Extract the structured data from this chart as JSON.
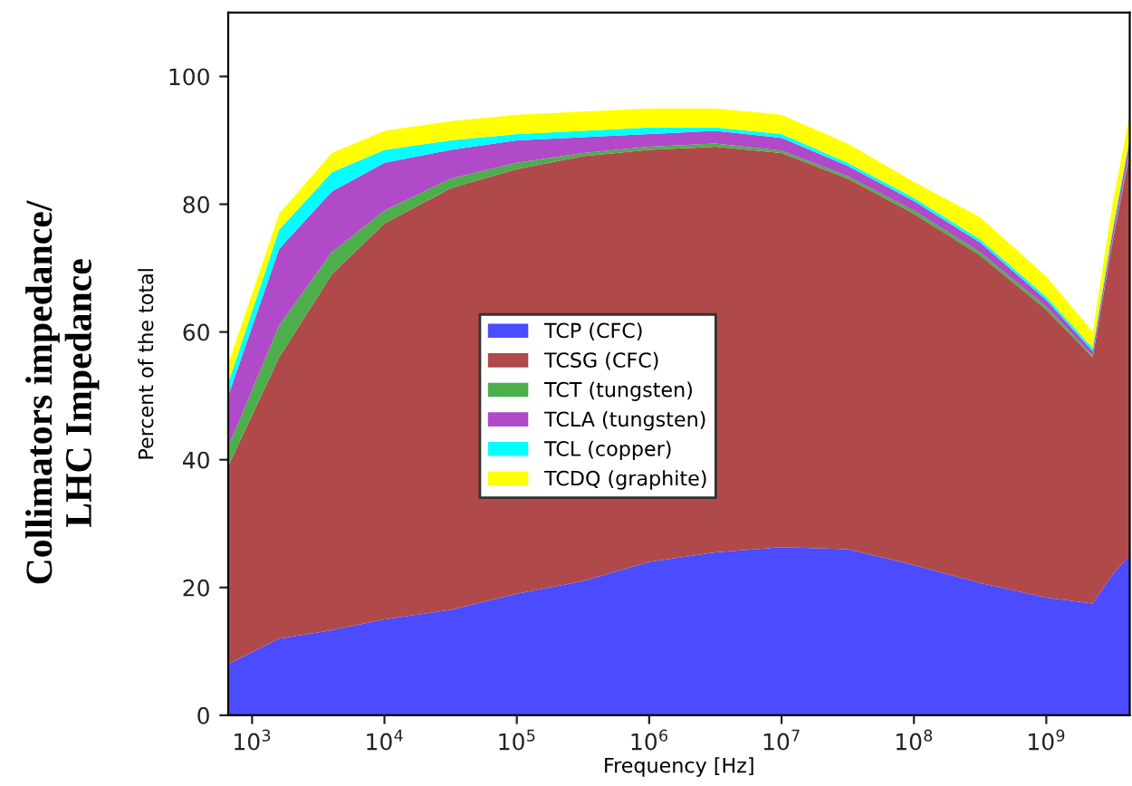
{
  "chart_data": {
    "type": "area",
    "stacked": true,
    "log": "x",
    "xlabel": "Frequency [Hz]",
    "ylabel": "Percent of the total",
    "annotations": [
      "Collimators impedance/\nLHC Impedance"
    ],
    "x": [
      660,
      1600,
      4000,
      10000,
      31600,
      100000,
      316000,
      1000000,
      3160000,
      10000000,
      31600000,
      100000000,
      316000000,
      1000000000,
      2240000000,
      3160000000,
      4270000000
    ],
    "series": [
      {
        "name": "TCP (CFC)",
        "color": "#4b4bff",
        "values": [
          8,
          12,
          13.3,
          15,
          16.5,
          19,
          21,
          24,
          25.5,
          26.3,
          26,
          23.5,
          20.7,
          18.4,
          17.5,
          22,
          25
        ]
      },
      {
        "name": "TCSG (CFC)",
        "color": "#b04a4a",
        "values": [
          31,
          44,
          55.7,
          62,
          66,
          66.5,
          66.5,
          64.5,
          63.5,
          61.7,
          58,
          55,
          51.3,
          45.1,
          38.5,
          52,
          63
        ]
      },
      {
        "name": "TCT (tungsten)",
        "color": "#4caf4c",
        "values": [
          3,
          5,
          3.5,
          2,
          1.5,
          1,
          0.5,
          0.5,
          0.5,
          0.4,
          0.4,
          0.5,
          0.5,
          0.5,
          0.3,
          0.3,
          0.5
        ]
      },
      {
        "name": "TCLA (tungsten)",
        "color": "#b04ac8",
        "values": [
          8,
          12,
          9.5,
          7.5,
          4.5,
          3.5,
          2.5,
          2,
          2,
          2,
          1.6,
          1.5,
          1.5,
          1,
          0.7,
          1.2,
          1.5
        ]
      },
      {
        "name": "TCL (copper)",
        "color": "#00ffff",
        "values": [
          2,
          3,
          3,
          2,
          1.5,
          1,
          1,
          1,
          0.5,
          0.6,
          0.5,
          0.5,
          0.5,
          0.5,
          0.5,
          0.5,
          0.5
        ]
      },
      {
        "name": "TCDQ (graphite)",
        "color": "#ffff00",
        "values": [
          3,
          2.5,
          3,
          3,
          3,
          3,
          3,
          3,
          3,
          3,
          3,
          2.5,
          3.5,
          3.2,
          2.5,
          4,
          3.5
        ]
      }
    ],
    "xlim": [
      660,
      4270000000
    ],
    "ylim": [
      0,
      110
    ],
    "xticks": [
      {
        "value": 1000,
        "label": "10$^{3}$"
      },
      {
        "value": 10000,
        "label": "10$^{4}$"
      },
      {
        "value": 100000,
        "label": "10$^{5}$"
      },
      {
        "value": 1000000,
        "label": "10$^{6}$"
      },
      {
        "value": 10000000,
        "label": "10$^{7}$"
      },
      {
        "value": 100000000,
        "label": "10$^{8}$"
      },
      {
        "value": 1000000000,
        "label": "10$^{9}$"
      }
    ],
    "yticks": [
      0,
      20,
      40,
      60,
      80,
      100
    ],
    "legend": "center",
    "grid": false
  }
}
